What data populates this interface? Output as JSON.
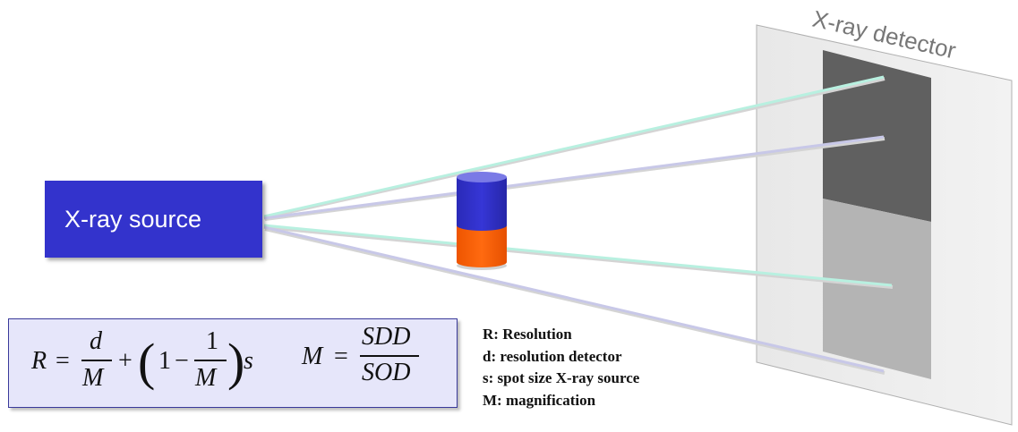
{
  "source": {
    "label": "X-ray source"
  },
  "detector": {
    "label": "X-ray detector"
  },
  "formula": {
    "R": "R",
    "eq": "=",
    "d": "d",
    "M": "M",
    "plus": "+",
    "lparen": "(",
    "one": "1",
    "minus": "−",
    "rparen": ")",
    "s": "s",
    "SDD": "SDD",
    "SOD": "SOD"
  },
  "legend": [
    "R: Resolution",
    "d: resolution detector",
    "s: spot size X-ray source",
    "M: magnification"
  ],
  "colors": {
    "source": "#3333cc",
    "cylinder_top": "#3333cc",
    "cylinder_bottom": "#ff6600",
    "ray_teal": "#b8f0e0",
    "ray_lavender": "#c8c8e8",
    "detector_dark": "#606060",
    "detector_light": "#b4b4b4",
    "formula_bg": "#e6e6fa"
  }
}
